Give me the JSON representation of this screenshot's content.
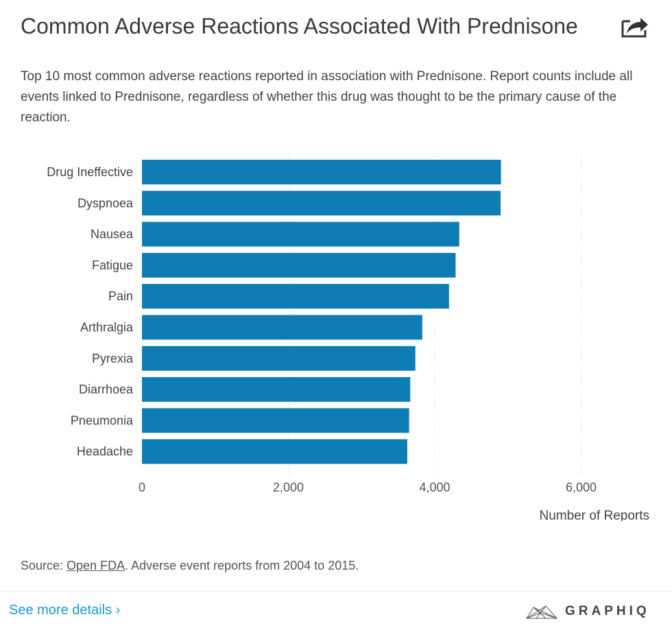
{
  "header": {
    "title": "Common Adverse Reactions Associated With Prednisone",
    "share_icon": "share-icon",
    "subtitle": "Top 10 most common adverse reactions reported in association with Prednisone. Report counts include all events linked to Prednisone, regardless of whether this drug was thought to be the primary cause of the reaction."
  },
  "chart_data": {
    "type": "bar",
    "orientation": "horizontal",
    "title": "Common Adverse Reactions Associated With Prednisone",
    "categories": [
      "Drug Ineffective",
      "Dyspnoea",
      "Nausea",
      "Fatigue",
      "Pain",
      "Arthralgia",
      "Pyrexia",
      "Diarrhoea",
      "Pneumonia",
      "Headache"
    ],
    "values": [
      4905,
      4900,
      4335,
      4285,
      4195,
      3830,
      3735,
      3665,
      3650,
      3625
    ],
    "xlabel": "Number of Reports",
    "ylabel": "",
    "xlim": [
      0,
      7000
    ],
    "xticks": [
      0,
      2000,
      4000,
      6000
    ],
    "xtick_labels": [
      "0",
      "2,000",
      "4,000",
      "6,000"
    ],
    "grid": true,
    "bar_color": "#0f7db5"
  },
  "footer": {
    "source_prefix": "Source: ",
    "source_link": "Open FDA",
    "source_suffix": ". Adverse event reports from 2004 to 2015.",
    "more_link": "See more details ›",
    "brand": "GRAPHIQ"
  }
}
